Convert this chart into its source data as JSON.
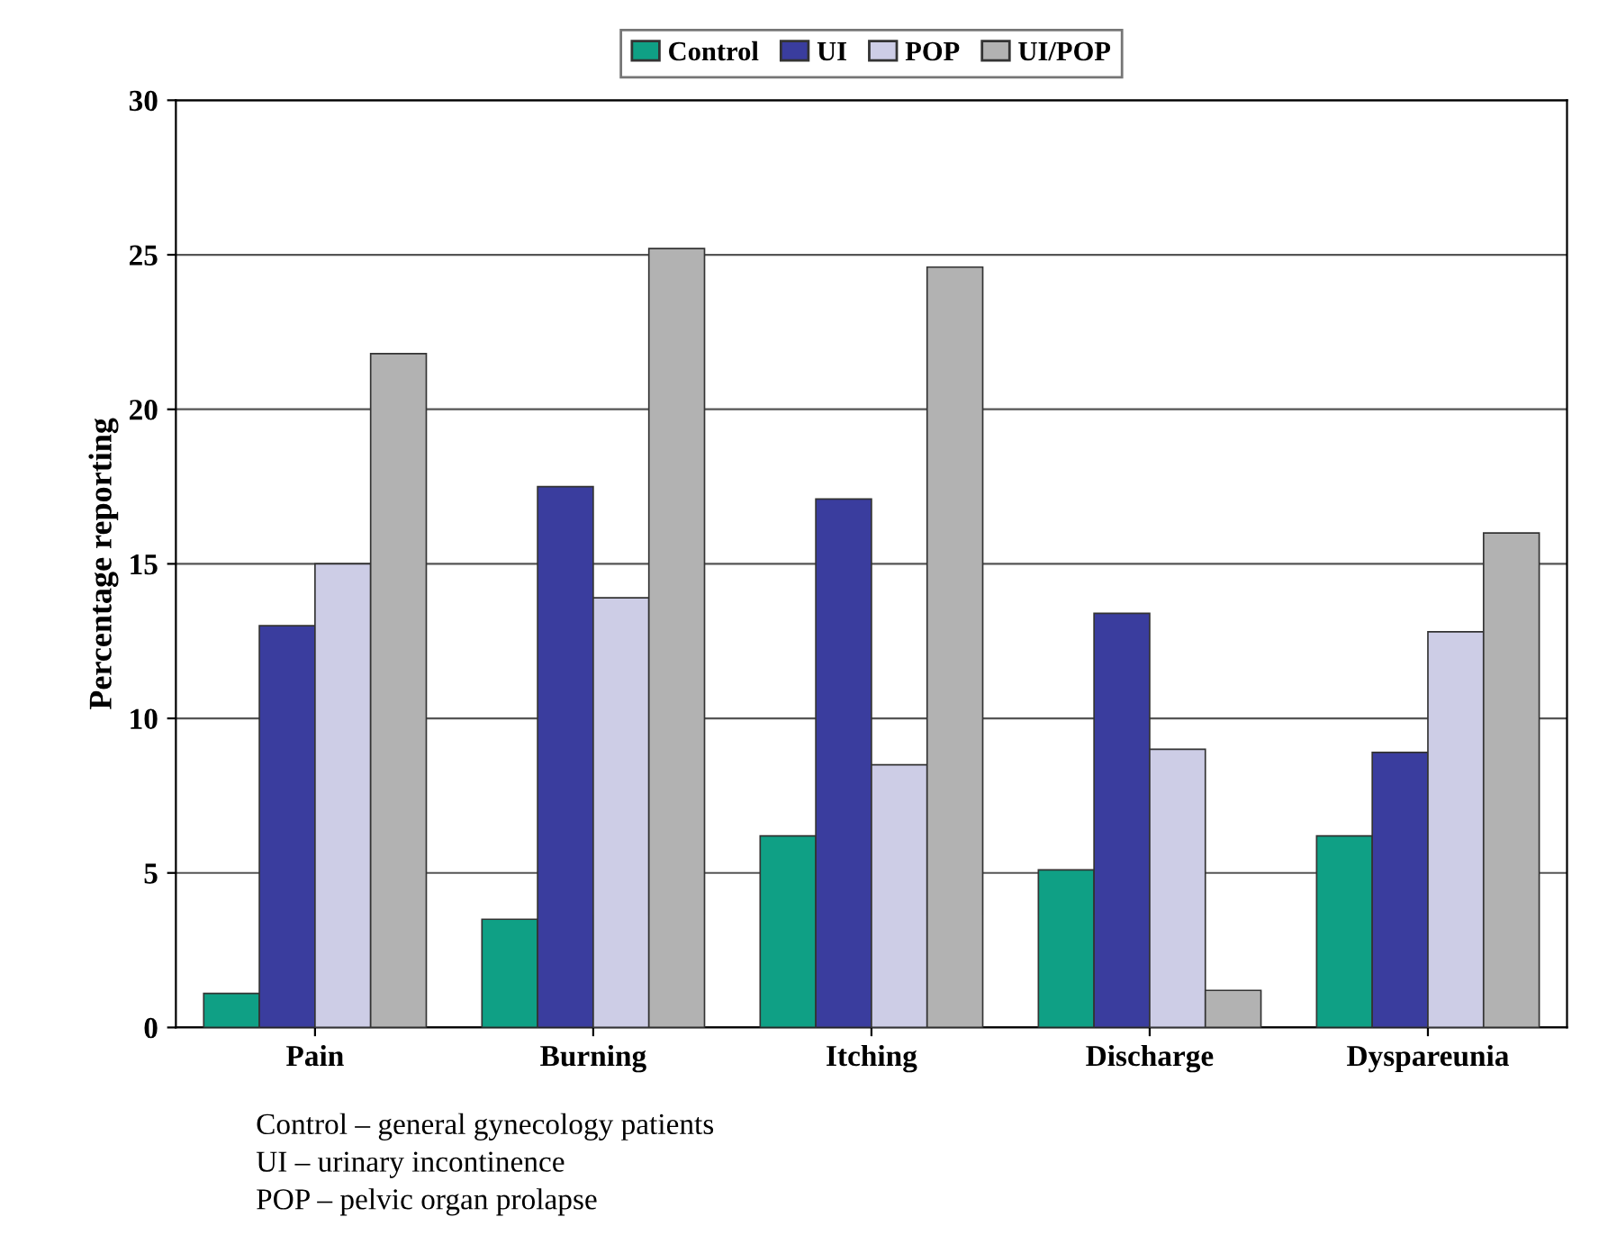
{
  "chart_data": {
    "type": "bar",
    "ylabel": "Percentage reporting",
    "categories": [
      "Pain",
      "Burning",
      "Itching",
      "Discharge",
      "Dyspareunia"
    ],
    "series": [
      {
        "name": "Control",
        "color": "#0fa085",
        "values": [
          1.1,
          3.5,
          6.2,
          5.1,
          6.2
        ]
      },
      {
        "name": "UI",
        "color": "#3a3d9e",
        "values": [
          13.0,
          17.5,
          17.1,
          13.4,
          8.9
        ]
      },
      {
        "name": "POP",
        "color": "#cdcde6",
        "values": [
          15.0,
          13.9,
          8.5,
          9.0,
          12.8
        ]
      },
      {
        "name": "UI/POP",
        "color": "#b2b2b2",
        "values": [
          21.8,
          25.2,
          24.6,
          1.2,
          16.0
        ]
      }
    ],
    "ylim": [
      0,
      30
    ],
    "yticks": [
      0,
      5,
      10,
      15,
      20,
      25,
      30
    ],
    "grid": "y",
    "legend": "top",
    "annotations": [
      "Control – general gynecology patients",
      "UI – urinary incontinence",
      "POP – pelvic organ prolapse"
    ]
  }
}
